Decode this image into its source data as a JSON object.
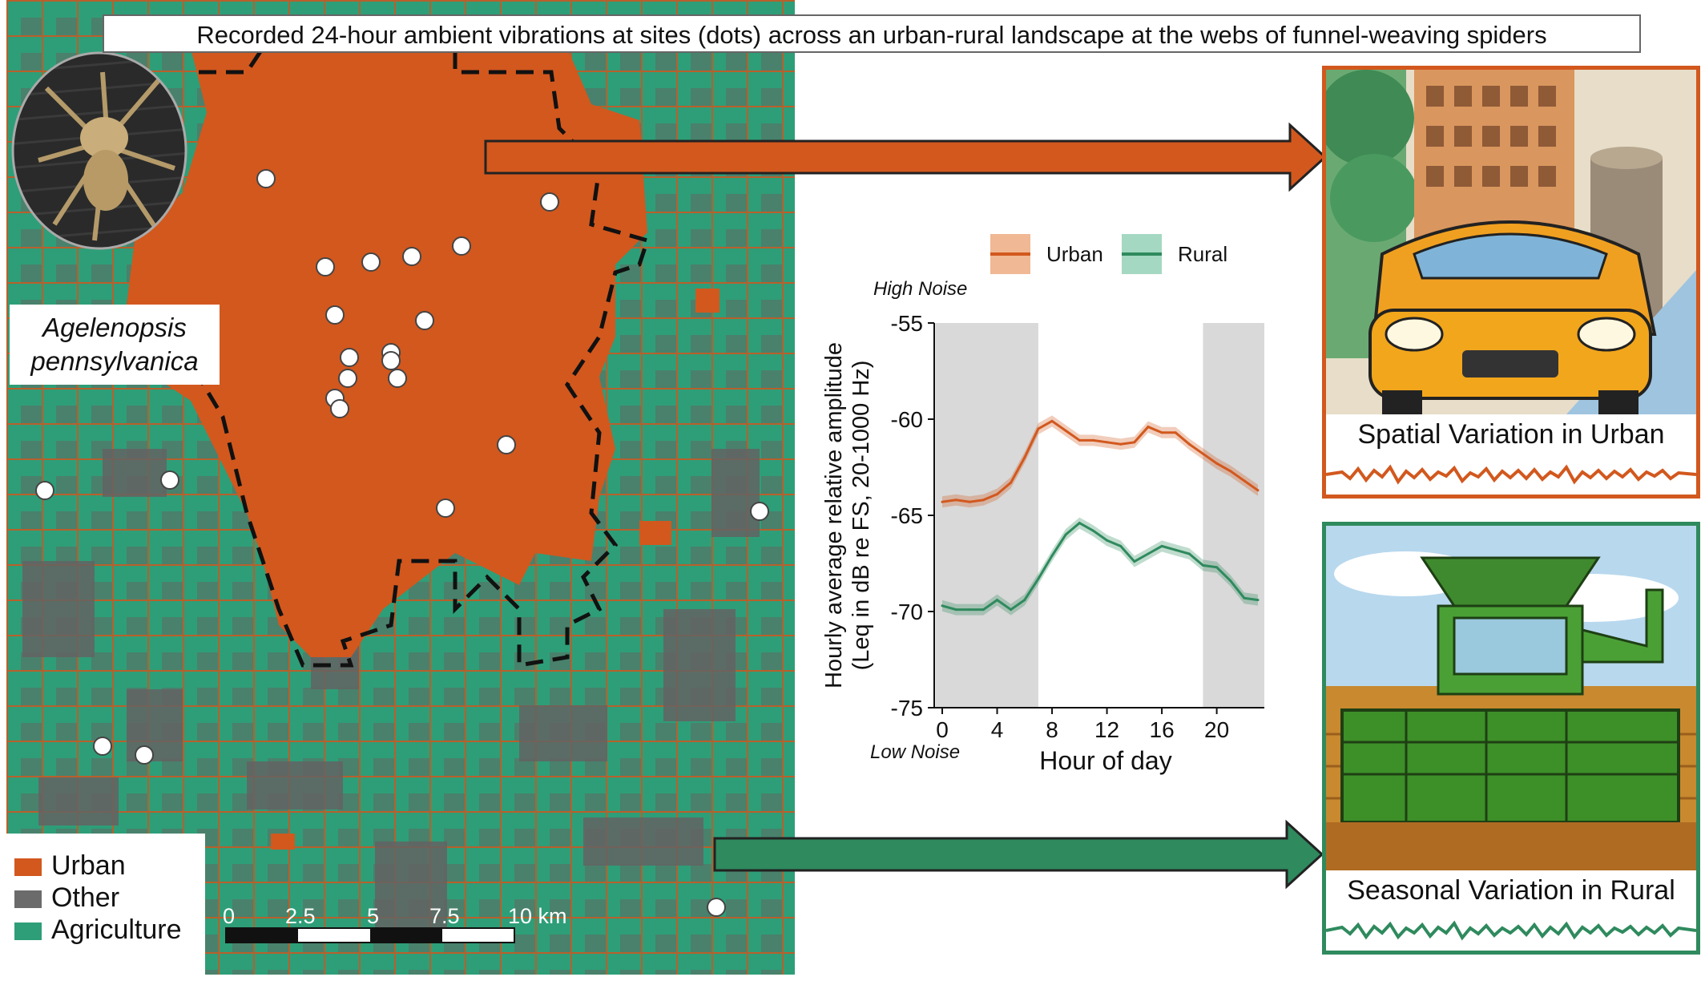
{
  "title": "Recorded 24-hour ambient vibrations at sites (dots) across an urban-rural landscape at the webs of funnel-weaving spiders",
  "species": {
    "line1": "Agelenopsis",
    "line2": "pennsylvanica"
  },
  "map": {
    "legend": [
      {
        "label": "Urban",
        "color": "#d2581e"
      },
      {
        "label": "Other",
        "color": "#6b6b6b"
      },
      {
        "label": "Agriculture",
        "color": "#2e9e78"
      }
    ],
    "scale_labels": [
      "0",
      "2.5",
      "5",
      "7.5",
      "10 km"
    ]
  },
  "colors": {
    "urban": "#d2581e",
    "rural": "#2f8a5e",
    "shade": "#d9d9d9"
  },
  "chart_data": {
    "type": "line",
    "xlabel": "Hour of day",
    "ylabel_line1": "Hourly average relative amplitude",
    "ylabel_line2": "(Leq in dB re FS, 20-1000 Hz)",
    "high_label": "High Noise",
    "low_label": "Low Noise",
    "xlim": [
      0,
      23
    ],
    "ylim": [
      -75,
      -55
    ],
    "x_ticks": [
      0,
      4,
      8,
      12,
      16,
      20
    ],
    "y_ticks": [
      -55,
      -60,
      -65,
      -70,
      -75
    ],
    "night_shading": [
      [
        -0.5,
        7
      ],
      [
        19,
        23.5
      ]
    ],
    "x": [
      0,
      1,
      2,
      3,
      4,
      5,
      6,
      7,
      8,
      9,
      10,
      11,
      12,
      13,
      14,
      15,
      16,
      17,
      18,
      19,
      20,
      21,
      22,
      23
    ],
    "series": [
      {
        "name": "Urban",
        "color": "#d2581e",
        "values": [
          -64.3,
          -64.2,
          -64.3,
          -64.2,
          -63.9,
          -63.3,
          -62.0,
          -60.5,
          -60.1,
          -60.6,
          -61.1,
          -61.1,
          -61.2,
          -61.3,
          -61.2,
          -60.4,
          -60.7,
          -60.7,
          -61.3,
          -61.8,
          -62.3,
          -62.7,
          -63.2,
          -63.7
        ]
      },
      {
        "name": "Rural",
        "color": "#2f8a5e",
        "values": [
          -69.7,
          -69.9,
          -69.9,
          -69.9,
          -69.4,
          -69.9,
          -69.4,
          -68.3,
          -67.1,
          -66.0,
          -65.4,
          -65.8,
          -66.3,
          -66.6,
          -67.4,
          -67.0,
          -66.6,
          -66.8,
          -67.0,
          -67.6,
          -67.7,
          -68.4,
          -69.3,
          -69.4
        ]
      }
    ]
  },
  "panels": {
    "urban_caption": "Spatial Variation in Urban",
    "rural_caption": "Seasonal Variation in Rural"
  }
}
